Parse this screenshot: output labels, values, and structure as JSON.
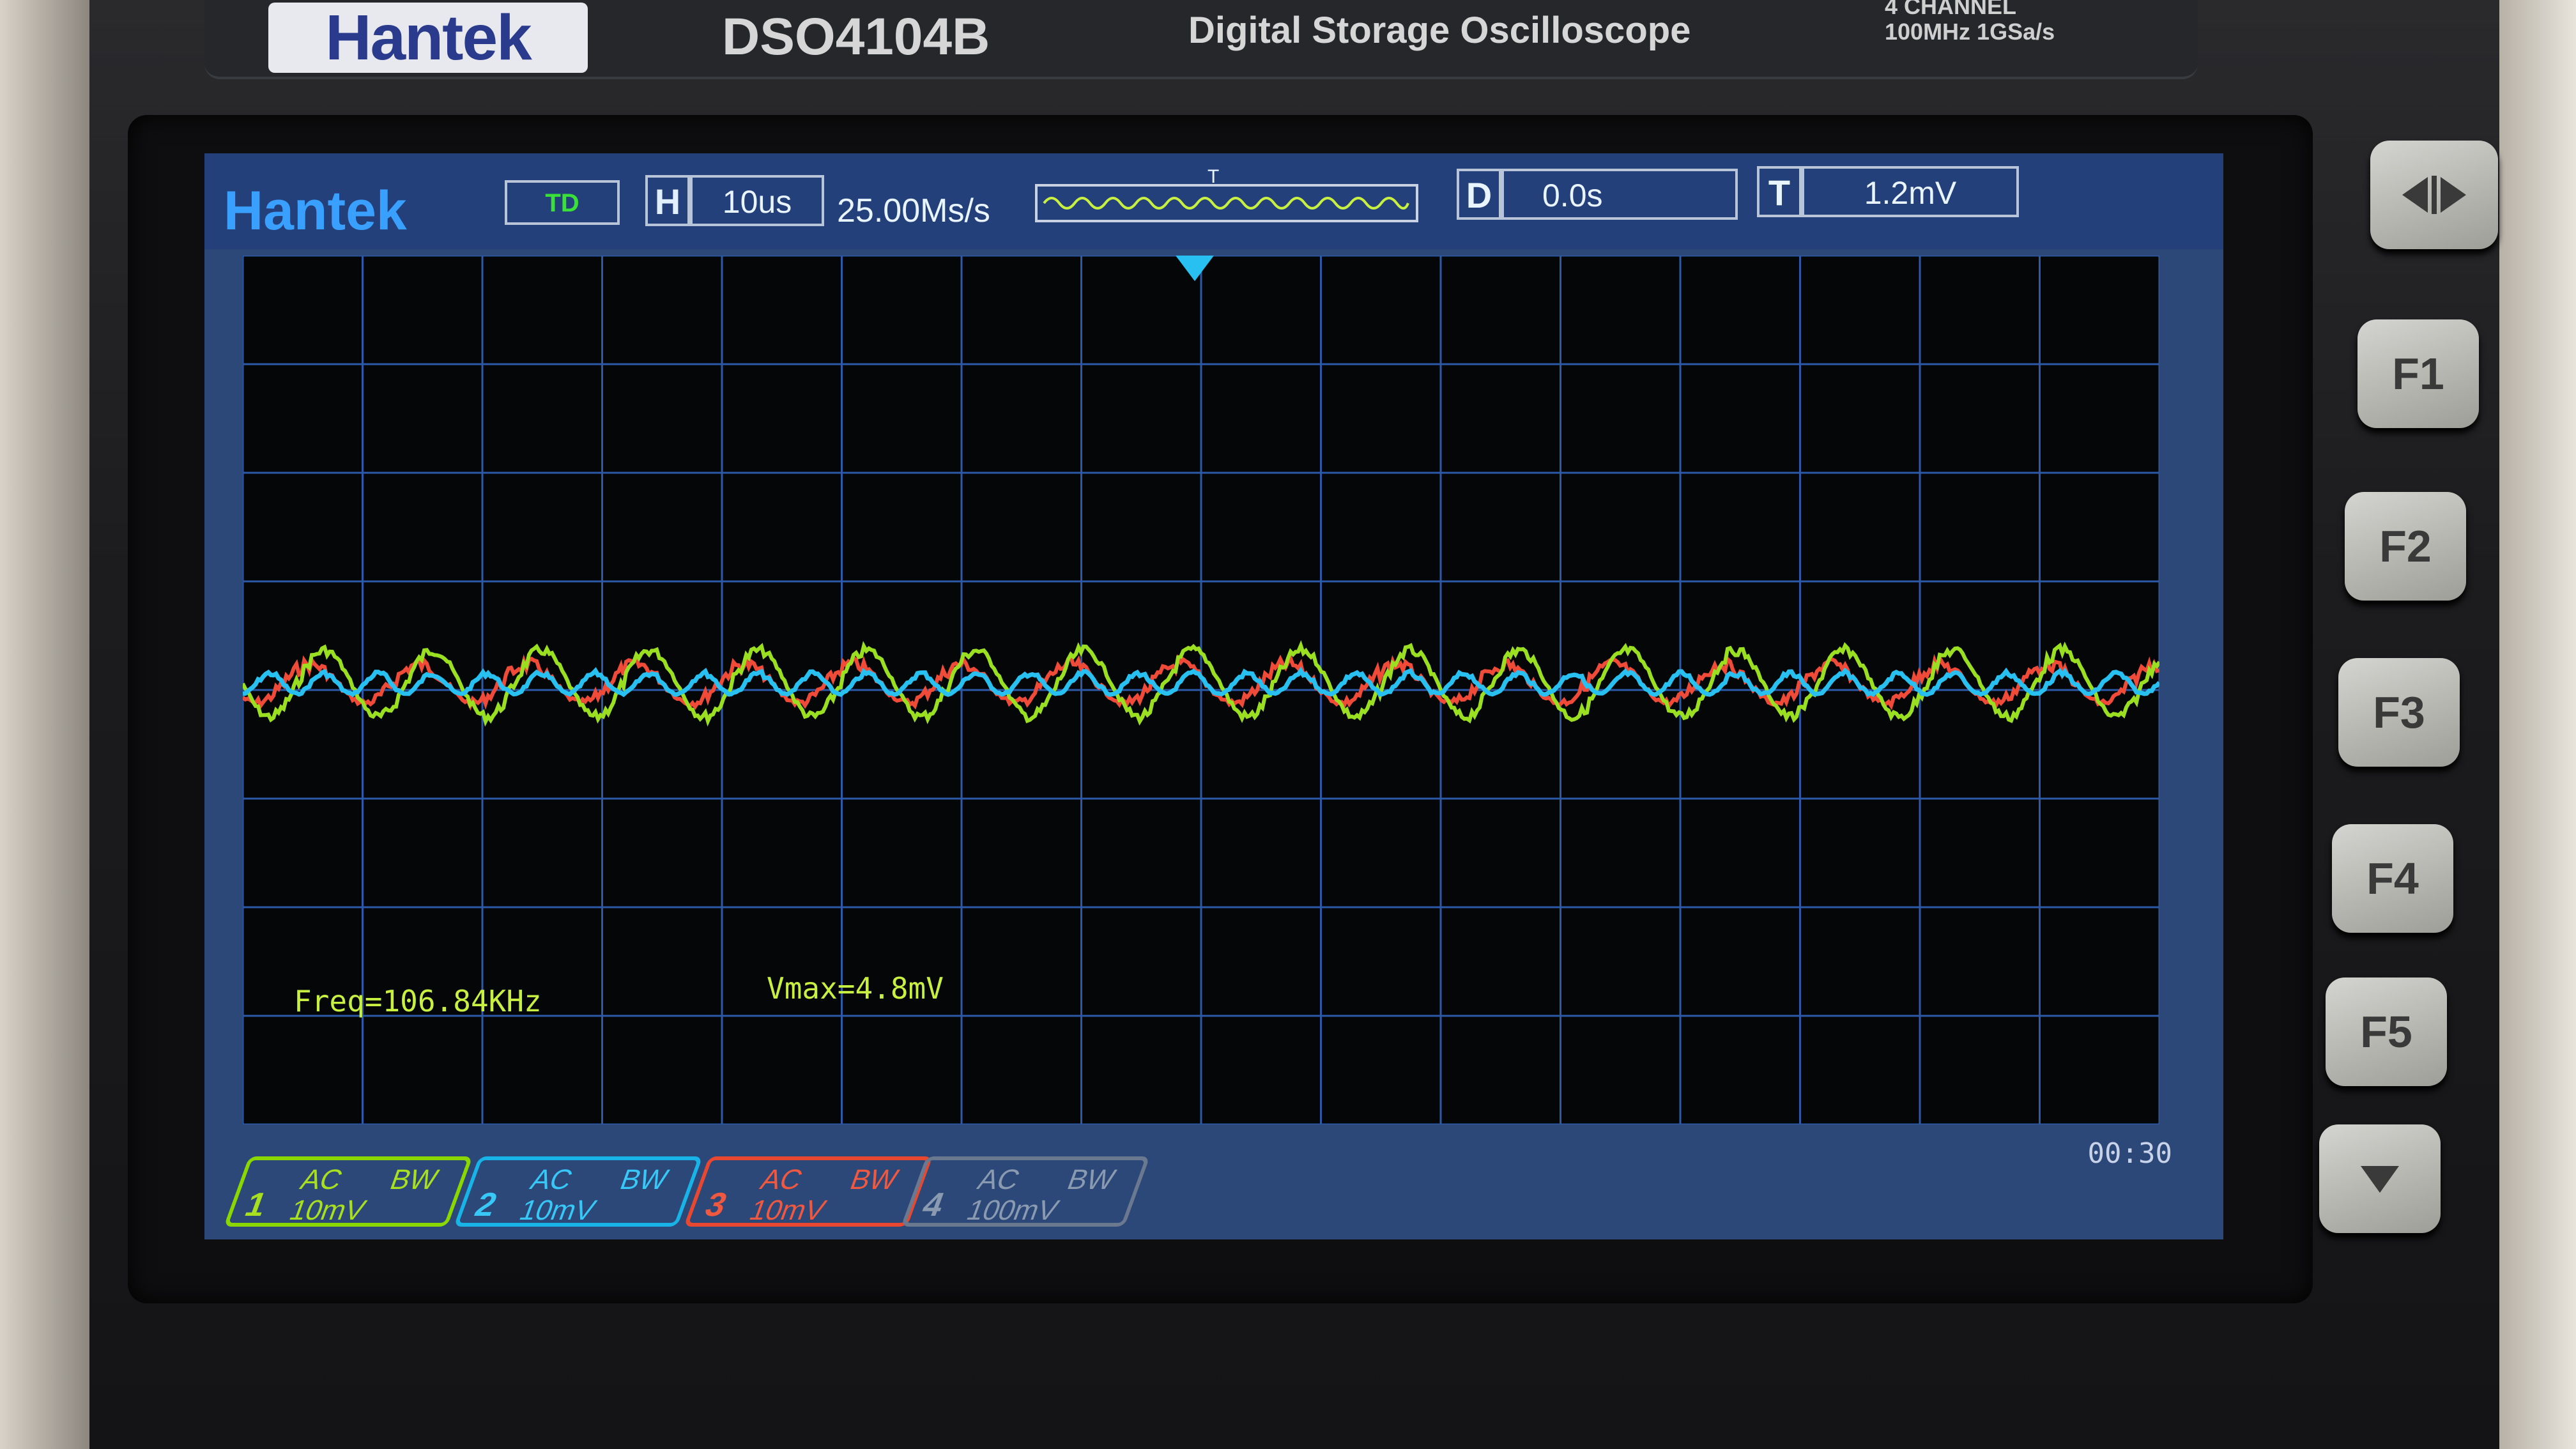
{
  "device": {
    "brand": "Hantek",
    "model": "DSO4104B",
    "name": "Digital Storage Oscilloscope",
    "spec_line1": "4 CHANNEL",
    "spec_line2": "100MHz 1GSa/s"
  },
  "screen": {
    "logo": "Hantek",
    "mode": "TD",
    "horizontal": {
      "key": "H",
      "value": "10us"
    },
    "sample_rate": "25.00Ms/s",
    "trigger_mark": "T",
    "delay": {
      "key": "D",
      "value": "0.0s"
    },
    "trigger_level": {
      "key": "T",
      "value": "1.2mV"
    },
    "measurements": {
      "freq": "Freq=106.84KHz",
      "vmax": "Vmax=4.8mV"
    },
    "timer": "00:30"
  },
  "channels": [
    {
      "num": "1",
      "coupling": "AC",
      "bw": "BW",
      "scale": "10mV",
      "color": "#9ae020"
    },
    {
      "num": "2",
      "coupling": "AC",
      "bw": "BW",
      "scale": "10mV",
      "color": "#28c0f0"
    },
    {
      "num": "3",
      "coupling": "AC",
      "bw": "BW",
      "scale": "10mV",
      "color": "#f04a38"
    },
    {
      "num": "4",
      "coupling": "AC",
      "bw": "BW",
      "scale": "100mV",
      "color": "#7a8aa2"
    }
  ],
  "function_keys": {
    "top_icon": "left-right-arrow-icon",
    "f1": "F1",
    "f2": "F2",
    "f3": "F3",
    "f4": "F4",
    "f5": "F5",
    "bottom_icon": "down-arrow-icon"
  }
}
